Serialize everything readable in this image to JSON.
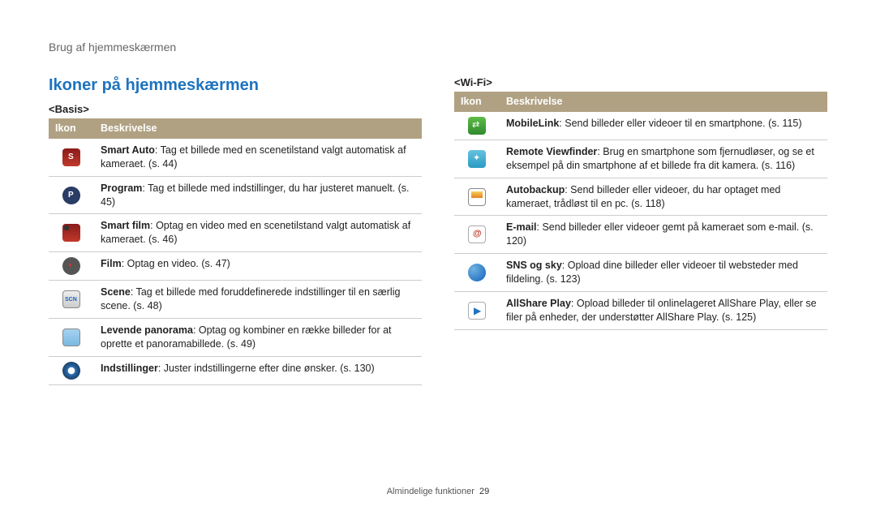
{
  "breadcrumb": "Brug af hjemmeskærmen",
  "section_title": "Ikoner på hjemmeskærmen",
  "footer_label": "Almindelige funktioner",
  "footer_page": "29",
  "headers": {
    "icon": "Ikon",
    "desc": "Beskrivelse"
  },
  "left": {
    "subhead": "<Basis>",
    "rows": [
      {
        "icon_class": "ic-smart",
        "bold": "Smart Auto",
        "text": ": Tag et billede med en scenetilstand valgt automatisk af kameraet. (s. 44)"
      },
      {
        "icon_class": "ic-prog",
        "bold": "Program",
        "text": ": Tag et billede med indstillinger, du har justeret manuelt. (s. 45)"
      },
      {
        "icon_class": "ic-sfilm",
        "bold": "Smart film",
        "text": ": Optag en video med en scenetilstand valgt automatisk af kameraet. (s. 46)"
      },
      {
        "icon_class": "ic-film",
        "bold": "Film",
        "text": ": Optag en video. (s. 47)"
      },
      {
        "icon_class": "ic-scn",
        "bold": "Scene",
        "text": ": Tag et billede med foruddefinerede indstillinger til en særlig scene. (s. 48)"
      },
      {
        "icon_class": "ic-pano",
        "bold": "Levende panorama",
        "text": ": Optag og kombiner en række billeder for at oprette et panoramabillede. (s. 49)"
      },
      {
        "icon_class": "ic-set",
        "bold": "Indstillinger",
        "text": ": Juster indstillingerne efter dine ønsker. (s. 130)"
      }
    ]
  },
  "right": {
    "subhead": "<Wi-Fi>",
    "rows": [
      {
        "icon_class": "ic-mlink",
        "bold": "MobileLink",
        "text": ": Send billeder eller videoer til en smartphone. (s. 115)"
      },
      {
        "icon_class": "ic-rvf",
        "bold": "Remote Viewfinder",
        "text": ": Brug en smartphone som fjernudløser, og se et eksempel på din smartphone af et billede fra dit kamera. (s. 116)"
      },
      {
        "icon_class": "ic-abk",
        "bold": "Autobackup",
        "text": ": Send billeder eller videoer, du har optaget med kameraet, trådløst til en pc. (s. 118)"
      },
      {
        "icon_class": "ic-email",
        "bold": "E-mail",
        "text": ": Send billeder eller videoer gemt på kameraet som e-mail. (s. 120)"
      },
      {
        "icon_class": "ic-sns",
        "bold": "SNS og sky",
        "text": ": Opload dine billeder eller videoer til websteder med fildeling. (s. 123)"
      },
      {
        "icon_class": "ic-asp",
        "bold": "AllShare Play",
        "text": ": Opload billeder til onlinelageret AllShare Play, eller se filer på enheder, der understøtter AllShare Play. (s. 125)"
      }
    ]
  }
}
